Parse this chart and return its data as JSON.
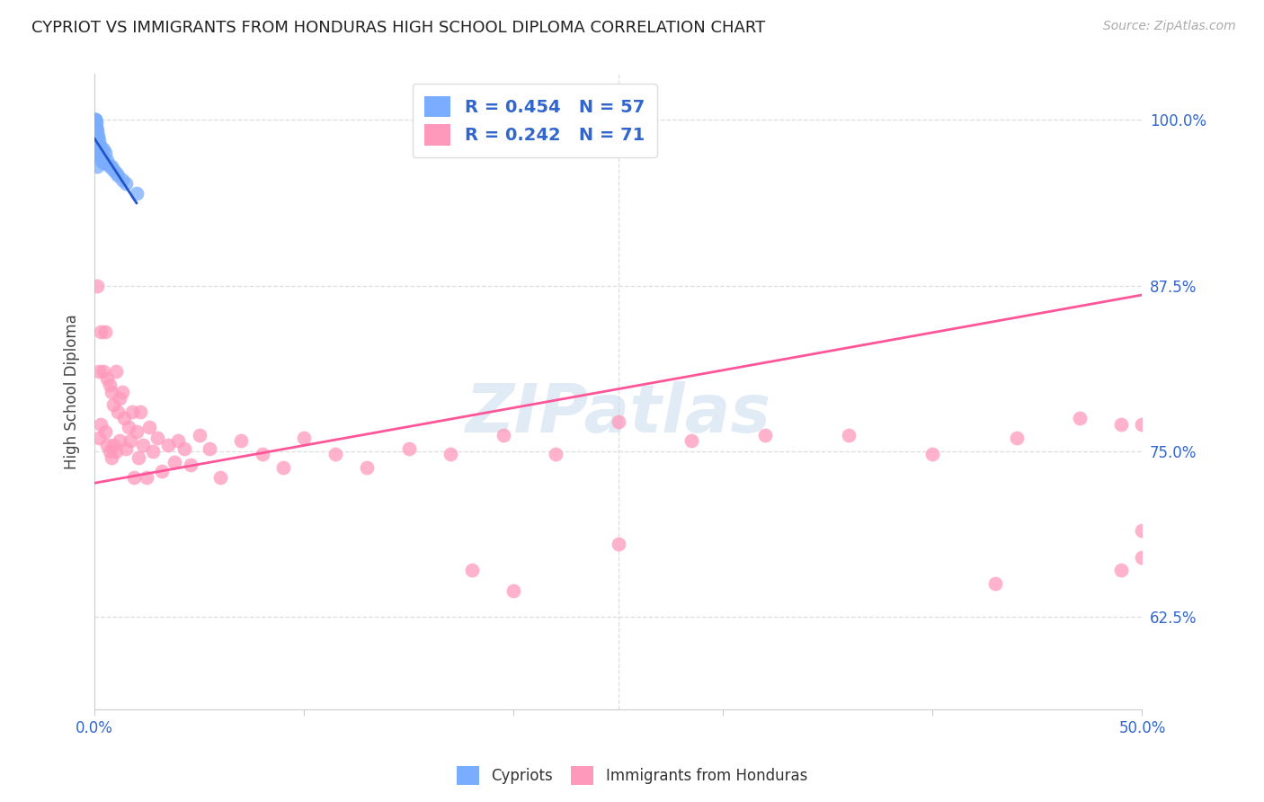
{
  "title": "CYPRIOT VS IMMIGRANTS FROM HONDURAS HIGH SCHOOL DIPLOMA CORRELATION CHART",
  "source": "Source: ZipAtlas.com",
  "ylabel": "High School Diploma",
  "xlim": [
    0.0,
    0.5
  ],
  "ylim": [
    0.555,
    1.035
  ],
  "xtick_vals": [
    0.0,
    0.1,
    0.2,
    0.3,
    0.4,
    0.5
  ],
  "xticklabels": [
    "0.0%",
    "",
    "",
    "",
    "",
    "50.0%"
  ],
  "ytick_vals": [
    0.625,
    0.75,
    0.875,
    1.0
  ],
  "yticklabels_right": [
    "62.5%",
    "75.0%",
    "87.5%",
    "100.0%"
  ],
  "legend_blue_label": "R = 0.454   N = 57",
  "legend_pink_label": "R = 0.242   N = 71",
  "blue_scatter_color": "#7AADFF",
  "pink_scatter_color": "#FF99BB",
  "blue_line_color": "#2255CC",
  "pink_line_color": "#FF5599",
  "watermark_text": "ZIPatlas",
  "title_fontsize": 13,
  "source_fontsize": 10,
  "tick_label_color": "#3366CC",
  "axis_label_color": "#444444",
  "grid_color": "#DDDDDD",
  "cypriot_x": [
    0.0002,
    0.0002,
    0.0003,
    0.0003,
    0.0003,
    0.0004,
    0.0004,
    0.0004,
    0.0005,
    0.0005,
    0.0005,
    0.0005,
    0.0006,
    0.0006,
    0.0006,
    0.0007,
    0.0007,
    0.0007,
    0.0008,
    0.0008,
    0.0008,
    0.0009,
    0.0009,
    0.001,
    0.001,
    0.001,
    0.001,
    0.0012,
    0.0012,
    0.0013,
    0.0013,
    0.0014,
    0.0015,
    0.0015,
    0.0016,
    0.0017,
    0.0018,
    0.002,
    0.002,
    0.0022,
    0.0025,
    0.003,
    0.003,
    0.0035,
    0.004,
    0.004,
    0.005,
    0.005,
    0.006,
    0.007,
    0.008,
    0.009,
    0.01,
    0.011,
    0.013,
    0.015,
    0.02
  ],
  "cypriot_y": [
    0.99,
    0.98,
    1.0,
    0.99,
    0.975,
    1.0,
    0.99,
    0.98,
    1.0,
    0.995,
    0.985,
    0.975,
    0.998,
    0.99,
    0.98,
    0.995,
    0.988,
    0.978,
    0.992,
    0.983,
    0.975,
    0.988,
    0.978,
    0.992,
    0.985,
    0.975,
    0.965,
    0.988,
    0.978,
    0.985,
    0.975,
    0.98,
    0.988,
    0.978,
    0.982,
    0.978,
    0.975,
    0.985,
    0.975,
    0.98,
    0.978,
    0.98,
    0.97,
    0.975,
    0.978,
    0.968,
    0.975,
    0.968,
    0.97,
    0.965,
    0.965,
    0.962,
    0.96,
    0.958,
    0.955,
    0.952,
    0.945
  ],
  "honduras_x": [
    0.001,
    0.002,
    0.002,
    0.003,
    0.003,
    0.004,
    0.005,
    0.005,
    0.006,
    0.006,
    0.007,
    0.007,
    0.008,
    0.008,
    0.009,
    0.009,
    0.01,
    0.01,
    0.011,
    0.012,
    0.012,
    0.013,
    0.014,
    0.015,
    0.016,
    0.017,
    0.018,
    0.019,
    0.02,
    0.021,
    0.022,
    0.023,
    0.025,
    0.026,
    0.028,
    0.03,
    0.032,
    0.035,
    0.038,
    0.04,
    0.043,
    0.046,
    0.05,
    0.055,
    0.06,
    0.07,
    0.08,
    0.09,
    0.1,
    0.115,
    0.13,
    0.15,
    0.17,
    0.195,
    0.22,
    0.25,
    0.285,
    0.32,
    0.36,
    0.4,
    0.44,
    0.47,
    0.49,
    0.5,
    0.5,
    0.5,
    0.18,
    0.2,
    0.25,
    0.43,
    0.49
  ],
  "honduras_y": [
    0.875,
    0.81,
    0.76,
    0.84,
    0.77,
    0.81,
    0.84,
    0.765,
    0.805,
    0.755,
    0.8,
    0.75,
    0.795,
    0.745,
    0.785,
    0.755,
    0.81,
    0.75,
    0.78,
    0.79,
    0.758,
    0.795,
    0.775,
    0.752,
    0.768,
    0.758,
    0.78,
    0.73,
    0.765,
    0.745,
    0.78,
    0.755,
    0.73,
    0.768,
    0.75,
    0.76,
    0.735,
    0.755,
    0.742,
    0.758,
    0.752,
    0.74,
    0.762,
    0.752,
    0.73,
    0.758,
    0.748,
    0.738,
    0.76,
    0.748,
    0.738,
    0.752,
    0.748,
    0.762,
    0.748,
    0.772,
    0.758,
    0.762,
    0.762,
    0.748,
    0.76,
    0.775,
    0.77,
    0.77,
    0.69,
    0.67,
    0.66,
    0.645,
    0.68,
    0.65,
    0.66
  ],
  "pink_trendline_x": [
    0.0,
    0.5
  ],
  "pink_trendline_y": [
    0.726,
    0.868
  ]
}
